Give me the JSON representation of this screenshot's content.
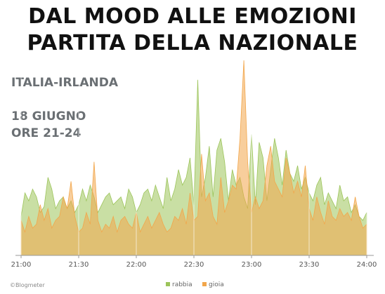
{
  "header": {
    "title_line1": "DAL MOOD ALLE EMOZIONI",
    "title_line2": "PARTITA DELLA NAZIONALE",
    "match": "ITALIA-IRLANDA",
    "date": "18 GIUGNO",
    "time_range": "ORE 21-24"
  },
  "credit": "©Blogmeter",
  "colors": {
    "rabbia": "#9cc45a",
    "gioia": "#f2a64b",
    "axis": "#999999",
    "grid": "#ffffff"
  },
  "chart_data": {
    "type": "area",
    "title": "DAL MOOD ALLE EMOZIONI PARTITA DELLA NAZIONALE",
    "xlabel": "",
    "ylabel": "",
    "x_range": [
      "21:00",
      "24:00"
    ],
    "x_ticks": [
      "21:00",
      "21:30",
      "22:00",
      "22:30",
      "23:00",
      "23:30",
      "24:00"
    ],
    "ylim": [
      0,
      100
    ],
    "grid": "vertical",
    "legend": "bottom-center",
    "x": [
      "21:00",
      "21:02",
      "21:04",
      "21:06",
      "21:08",
      "21:10",
      "21:12",
      "21:14",
      "21:16",
      "21:18",
      "21:20",
      "21:22",
      "21:24",
      "21:26",
      "21:28",
      "21:30",
      "21:32",
      "21:34",
      "21:36",
      "21:38",
      "21:40",
      "21:42",
      "21:44",
      "21:46",
      "21:48",
      "21:50",
      "21:52",
      "21:54",
      "21:56",
      "21:58",
      "22:00",
      "22:02",
      "22:04",
      "22:06",
      "22:08",
      "22:10",
      "22:12",
      "22:14",
      "22:16",
      "22:18",
      "22:20",
      "22:22",
      "22:24",
      "22:26",
      "22:28",
      "22:30",
      "22:32",
      "22:34",
      "22:36",
      "22:38",
      "22:40",
      "22:42",
      "22:44",
      "22:46",
      "22:48",
      "22:50",
      "22:52",
      "22:54",
      "22:56",
      "22:58",
      "23:00",
      "23:02",
      "23:04",
      "23:06",
      "23:08",
      "23:10",
      "23:12",
      "23:14",
      "23:16",
      "23:18",
      "23:20",
      "23:22",
      "23:24",
      "23:26",
      "23:28",
      "23:30",
      "23:32",
      "23:34",
      "23:36",
      "23:38",
      "23:40",
      "23:42",
      "23:44",
      "23:46",
      "23:48",
      "23:50",
      "23:52",
      "23:54",
      "23:56",
      "23:58",
      "24:00"
    ],
    "series": [
      {
        "name": "rabbia",
        "values": [
          20,
          32,
          28,
          34,
          30,
          22,
          25,
          40,
          34,
          24,
          28,
          30,
          24,
          28,
          22,
          26,
          34,
          28,
          36,
          30,
          22,
          26,
          30,
          32,
          26,
          28,
          30,
          24,
          34,
          30,
          22,
          26,
          32,
          34,
          28,
          36,
          30,
          24,
          40,
          28,
          34,
          44,
          36,
          40,
          50,
          26,
          90,
          30,
          40,
          56,
          30,
          54,
          60,
          48,
          28,
          44,
          36,
          40,
          30,
          24,
          62,
          26,
          58,
          50,
          28,
          44,
          60,
          50,
          36,
          54,
          42,
          38,
          46,
          34,
          40,
          32,
          28,
          36,
          40,
          26,
          32,
          28,
          24,
          36,
          28,
          30,
          22,
          26,
          20,
          18,
          22
        ]
      },
      {
        "name": "gioia",
        "values": [
          18,
          12,
          20,
          14,
          16,
          26,
          18,
          24,
          14,
          18,
          20,
          30,
          24,
          38,
          20,
          12,
          14,
          22,
          16,
          48,
          18,
          12,
          16,
          14,
          20,
          12,
          18,
          20,
          16,
          14,
          22,
          12,
          16,
          20,
          14,
          18,
          22,
          16,
          12,
          14,
          20,
          18,
          24,
          16,
          32,
          18,
          20,
          52,
          28,
          32,
          20,
          16,
          40,
          22,
          28,
          36,
          34,
          60,
          100,
          48,
          22,
          30,
          24,
          28,
          46,
          56,
          38,
          34,
          30,
          50,
          42,
          32,
          38,
          30,
          46,
          24,
          18,
          30,
          22,
          16,
          28,
          20,
          18,
          24,
          20,
          22,
          18,
          30,
          20,
          14,
          16
        ]
      }
    ]
  },
  "legend": [
    {
      "label": "rabbia",
      "color": "#9cc45a"
    },
    {
      "label": "gioia",
      "color": "#f2a64b"
    }
  ]
}
